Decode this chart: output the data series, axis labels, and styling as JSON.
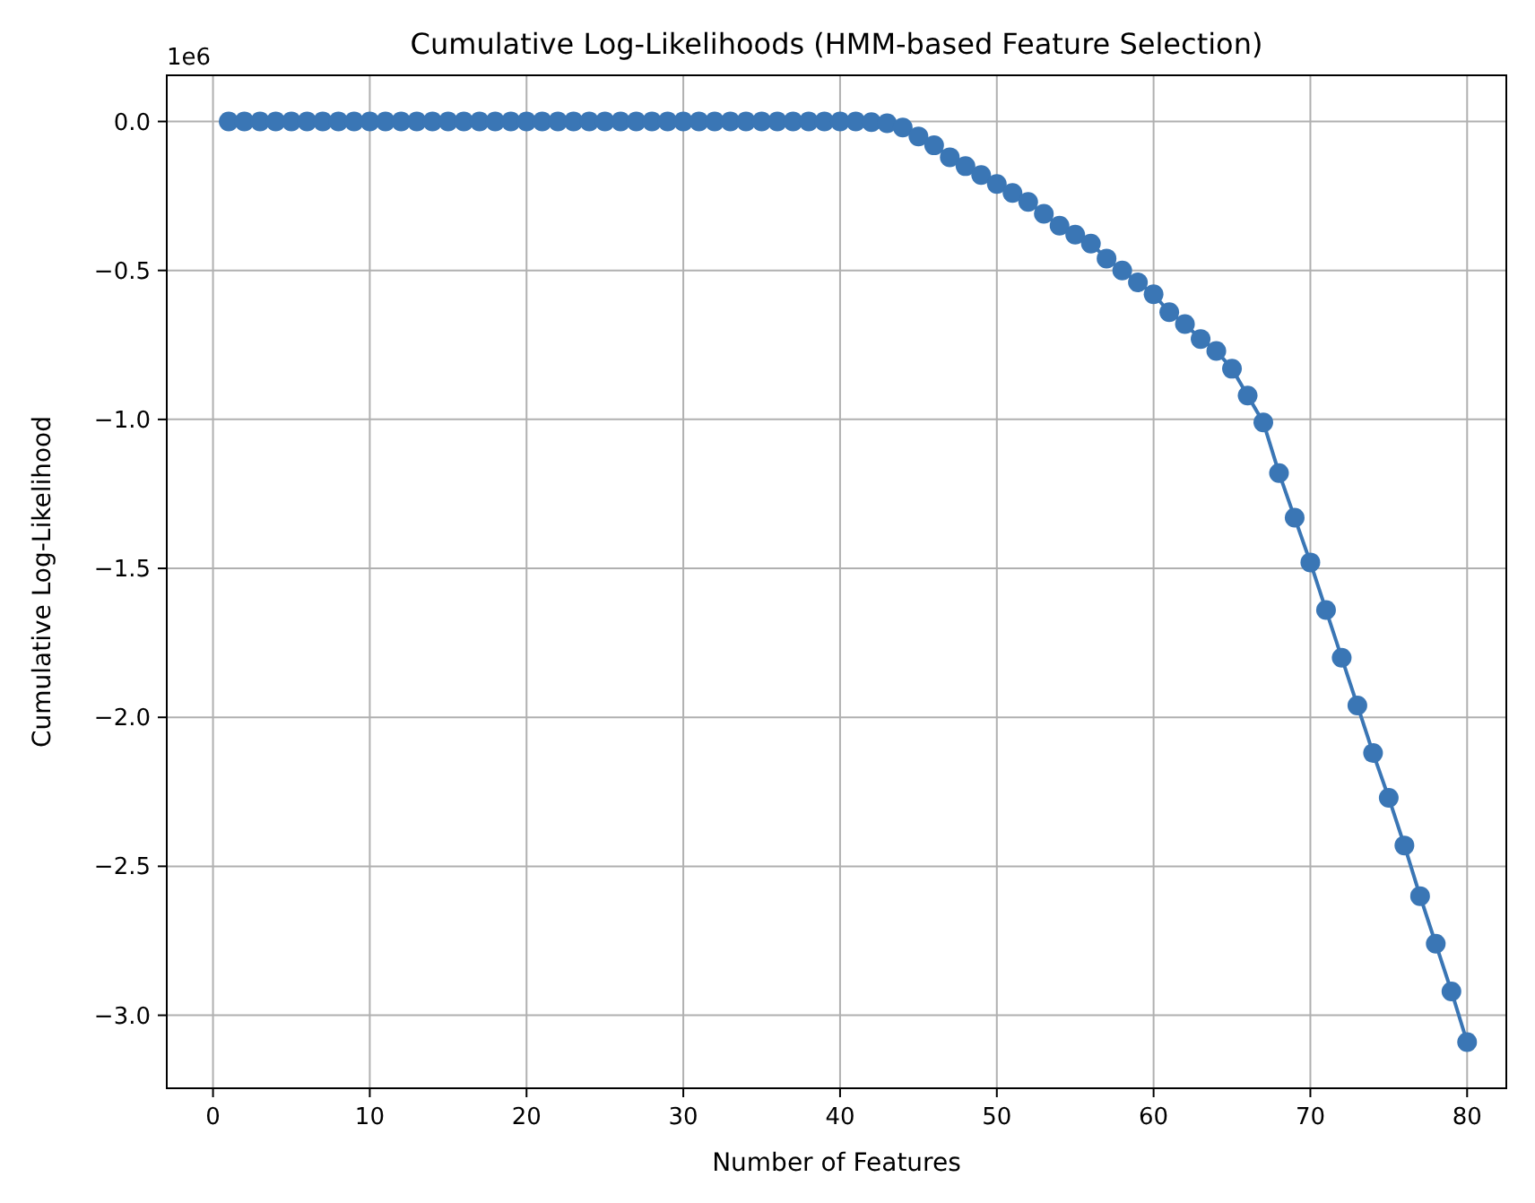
{
  "chart_data": {
    "type": "line",
    "title": "Cumulative Log-Likelihoods (HMM-based Feature Selection)",
    "xlabel": "Number of Features",
    "ylabel": "Cumulative Log-Likelihood",
    "annotations": [
      "1e6"
    ],
    "x": [
      1,
      2,
      3,
      4,
      5,
      6,
      7,
      8,
      9,
      10,
      11,
      12,
      13,
      14,
      15,
      16,
      17,
      18,
      19,
      20,
      21,
      22,
      23,
      24,
      25,
      26,
      27,
      28,
      29,
      30,
      31,
      32,
      33,
      34,
      35,
      36,
      37,
      38,
      39,
      40,
      41,
      42,
      43,
      44,
      45,
      46,
      47,
      48,
      49,
      50,
      51,
      52,
      53,
      54,
      55,
      56,
      57,
      58,
      59,
      60,
      61,
      62,
      63,
      64,
      65,
      66,
      67,
      68,
      69,
      70,
      71,
      72,
      73,
      74,
      75,
      76,
      77,
      78,
      79,
      80
    ],
    "series": [
      {
        "color": "#3a76b5",
        "values": [
          0,
          0,
          0,
          0,
          0,
          0,
          0,
          0,
          0,
          0,
          0,
          0,
          0,
          0,
          0,
          0,
          0,
          0,
          0,
          0,
          0,
          0,
          0,
          0,
          0,
          0,
          0,
          0,
          0,
          0,
          0,
          0,
          0,
          0,
          0,
          0,
          0,
          0,
          0,
          0,
          0,
          -0.002,
          -0.006,
          -0.02,
          -0.05,
          -0.08,
          -0.12,
          -0.15,
          -0.18,
          -0.21,
          -0.24,
          -0.27,
          -0.31,
          -0.35,
          -0.38,
          -0.41,
          -0.46,
          -0.5,
          -0.54,
          -0.58,
          -0.64,
          -0.68,
          -0.73,
          -0.77,
          -0.83,
          -0.92,
          -1.01,
          -1.18,
          -1.33,
          -1.48,
          -1.64,
          -1.8,
          -1.96,
          -2.12,
          -2.27,
          -2.43,
          -2.6,
          -2.76,
          -2.92,
          -3.09
        ]
      }
    ],
    "xlim": [
      -2.95,
      82.5
    ],
    "ylim": [
      -3.245,
      0.155
    ],
    "xticks": [
      0,
      10,
      20,
      30,
      40,
      50,
      60,
      70,
      80
    ],
    "yticks": [
      {
        "value": 0,
        "label": "0.0"
      },
      {
        "value": -0.5,
        "label": "−0.5"
      },
      {
        "value": -1,
        "label": "−1.0"
      },
      {
        "value": -1.5,
        "label": "−1.5"
      },
      {
        "value": -2,
        "label": "−2.0"
      },
      {
        "value": -2.5,
        "label": "−2.5"
      },
      {
        "value": -3,
        "label": "−3.0"
      }
    ],
    "grid": true,
    "marker": "circle",
    "line_style": "solid"
  }
}
